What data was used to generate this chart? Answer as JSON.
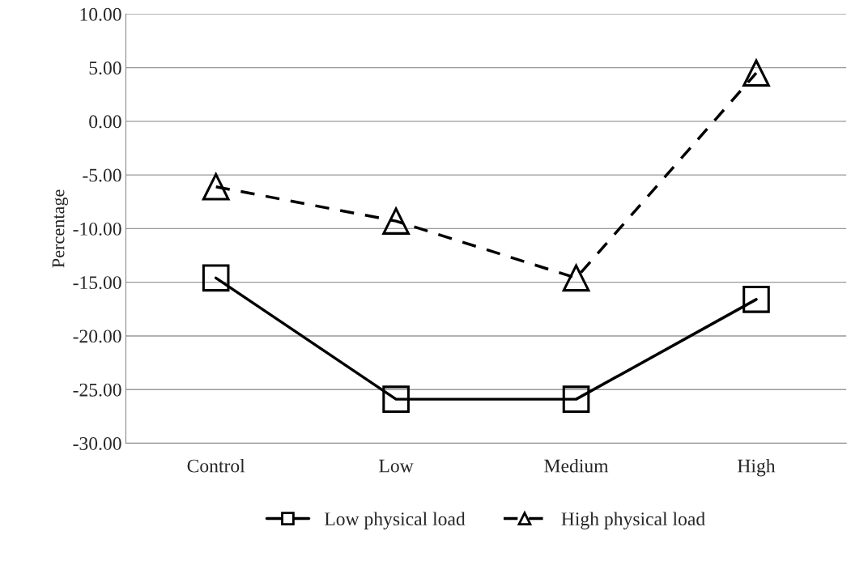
{
  "chart_data": {
    "type": "line",
    "ylabel": "Percentage",
    "categories": [
      "Control",
      "Low",
      "Medium",
      "High"
    ],
    "series": [
      {
        "name": "Low physical load",
        "color": "#000000",
        "values": [
          -14.6,
          -25.9,
          -25.9,
          -16.6
        ],
        "marker": "square",
        "line_style": "solid"
      },
      {
        "name": "High physical load",
        "color": "#000000",
        "values": [
          -6.1,
          -9.3,
          -14.6,
          4.5
        ],
        "marker": "triangle",
        "line_style": "dashed"
      }
    ],
    "ylim": [
      -30,
      10
    ],
    "yticks": [
      {
        "value": -30,
        "label": "-30.00"
      },
      {
        "value": -25,
        "label": "-25.00"
      },
      {
        "value": -20,
        "label": "-20.00"
      },
      {
        "value": -15,
        "label": "-15.00"
      },
      {
        "value": -10,
        "label": "-10.00"
      },
      {
        "value": -5,
        "label": "-5.00"
      },
      {
        "value": 0,
        "label": "0.00"
      },
      {
        "value": 5,
        "label": "5.00"
      },
      {
        "value": 10,
        "label": "10.00"
      }
    ],
    "grid": "y",
    "legend": "bottom"
  }
}
